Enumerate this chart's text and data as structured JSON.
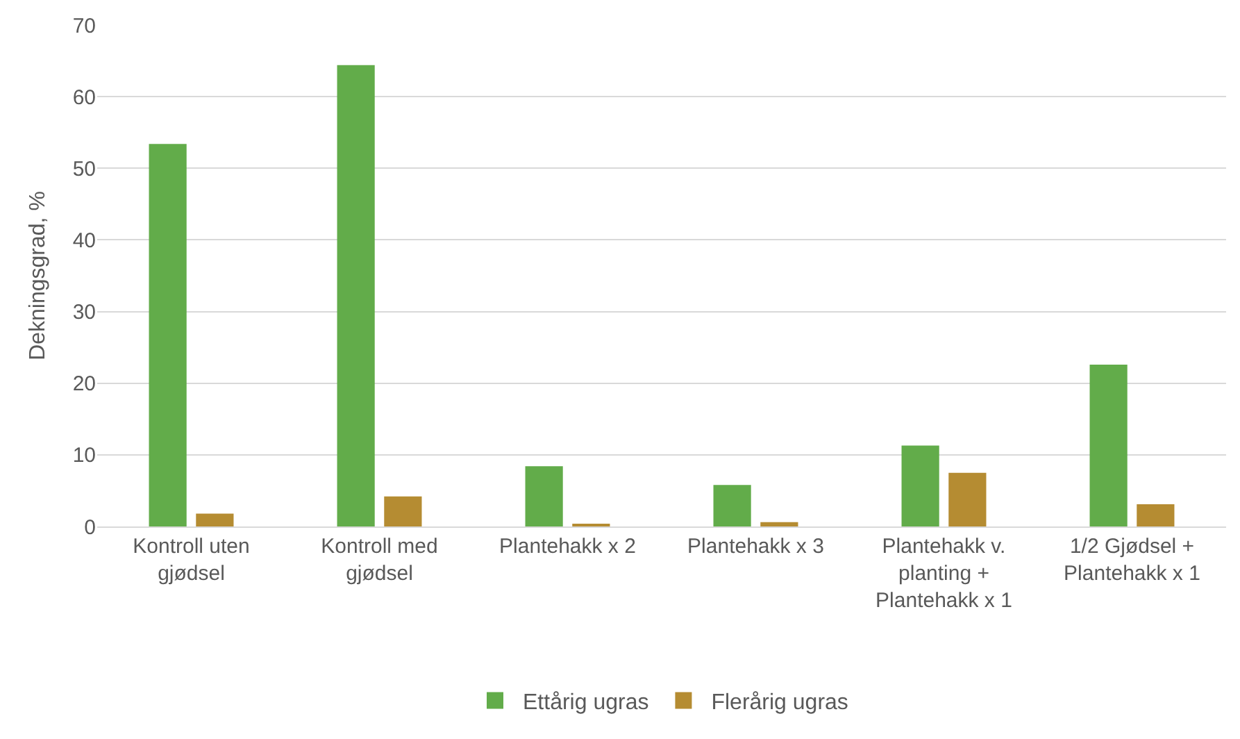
{
  "chart_data": {
    "type": "bar",
    "ylabel": "Dekningsgrad, %",
    "categories": [
      "Kontroll uten\ngjødsel",
      "Kontroll med\ngjødsel",
      "Plantehakk x 2",
      "Plantehakk x 3",
      "Plantehakk v.\nplanting +\nPlantehakk x 1",
      "1/2 Gjødsel +\nPlantehakk x 1"
    ],
    "series": [
      {
        "name": "Ettårig ugras",
        "color": "#62ac4a",
        "values": [
          53.4,
          64.4,
          8.4,
          5.8,
          11.3,
          22.6
        ]
      },
      {
        "name": "Flerårig ugras",
        "color": "#b58c32",
        "values": [
          1.8,
          4.2,
          0.3,
          0.6,
          7.5,
          3.1
        ]
      }
    ],
    "ylim": [
      0,
      70
    ],
    "yticks": [
      0,
      10,
      20,
      30,
      40,
      50,
      60,
      70
    ],
    "grid": "y",
    "legend": "bottom"
  }
}
